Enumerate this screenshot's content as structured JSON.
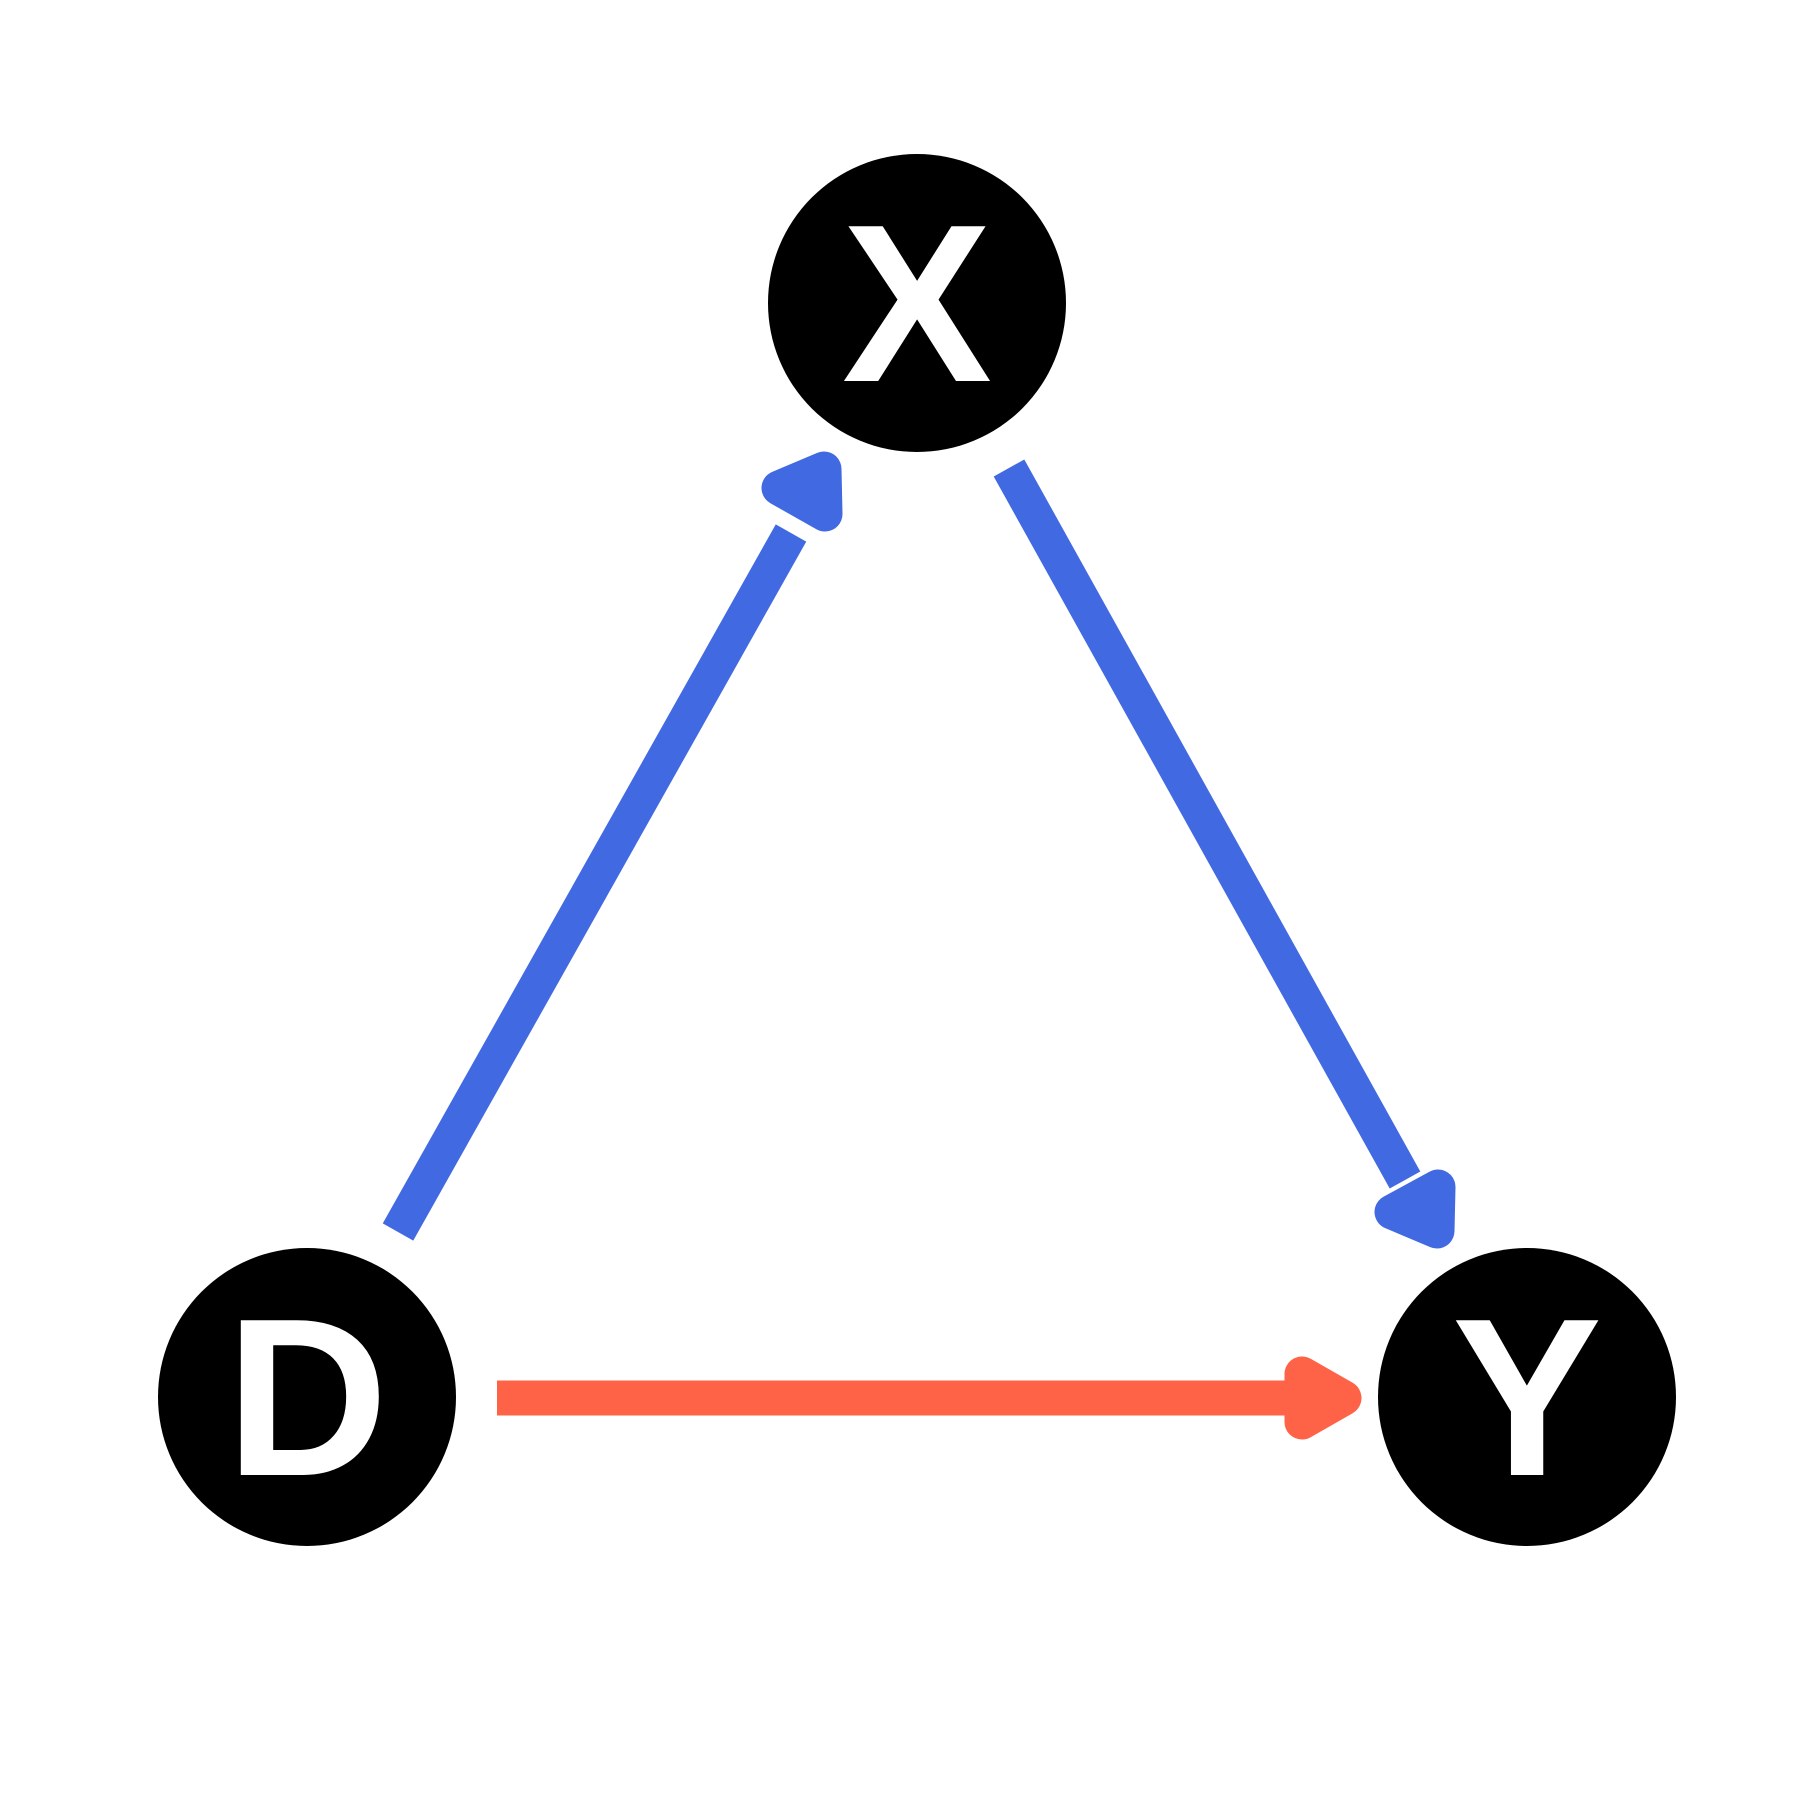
{
  "diagram": {
    "type": "directed-acyclic-graph",
    "nodes": [
      {
        "id": "X",
        "label": "X",
        "fill": "#000000",
        "text_color": "#ffffff"
      },
      {
        "id": "D",
        "label": "D",
        "fill": "#000000",
        "text_color": "#ffffff"
      },
      {
        "id": "Y",
        "label": "Y",
        "fill": "#000000",
        "text_color": "#ffffff"
      }
    ],
    "edges": [
      {
        "id": "edge-d-x",
        "from": "D",
        "to": "X",
        "color": "#4169e1"
      },
      {
        "id": "edge-x-y",
        "from": "X",
        "to": "Y",
        "color": "#4169e1"
      },
      {
        "id": "edge-d-y",
        "from": "D",
        "to": "Y",
        "color": "#ff6347"
      }
    ]
  }
}
